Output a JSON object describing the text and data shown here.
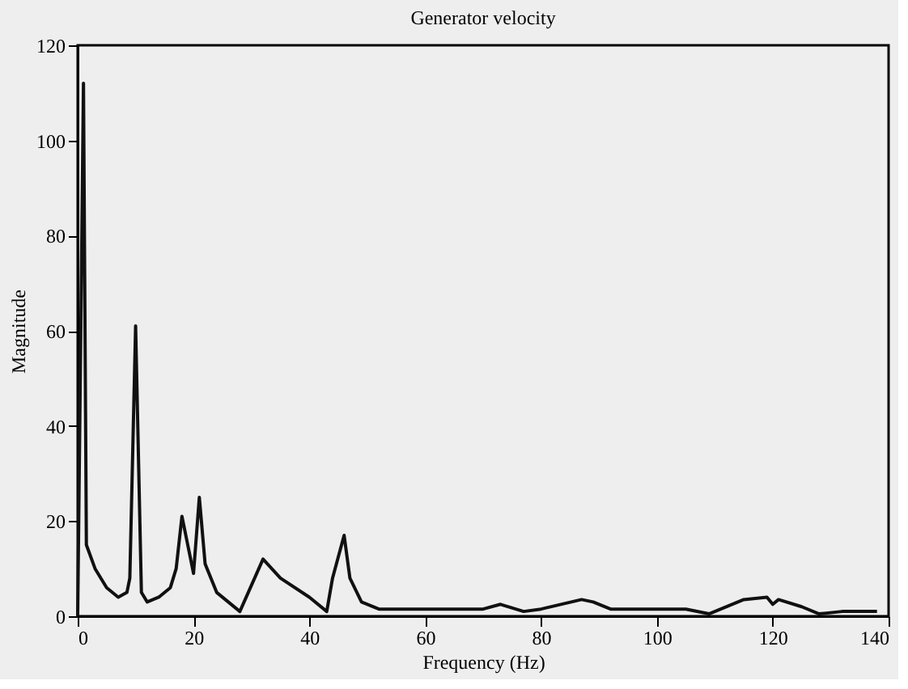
{
  "chart_data": {
    "type": "line",
    "title": "Generator velocity",
    "xlabel": "Frequency (Hz)",
    "ylabel": "Magnitude",
    "x": [
      0,
      1,
      1.5,
      3,
      5,
      7,
      8.5,
      9,
      10,
      11,
      12,
      14,
      16,
      17,
      18,
      20,
      21,
      22,
      24,
      28,
      32,
      35,
      40,
      43,
      44,
      46,
      47,
      49,
      52,
      60,
      70,
      73,
      77,
      80,
      87,
      89,
      92,
      100,
      105,
      109,
      115,
      119,
      120,
      121,
      125,
      128,
      132,
      138
    ],
    "series": [
      {
        "color": "#111111",
        "values": [
          0,
          112,
          15,
          10,
          6,
          4,
          5,
          8,
          61,
          5,
          3,
          4,
          6,
          10,
          21,
          9,
          25,
          11,
          5,
          1,
          12,
          8,
          4,
          1,
          8,
          17,
          8,
          3,
          1.5,
          1.5,
          1.5,
          2.5,
          1,
          1.5,
          3.5,
          3,
          1.5,
          1.5,
          1.5,
          0.5,
          3.5,
          4,
          2.5,
          3.5,
          2,
          0.5,
          1,
          1
        ]
      }
    ],
    "xlim": [
      0,
      140
    ],
    "ylim": [
      0,
      120
    ],
    "xticks": [
      0,
      20,
      40,
      60,
      80,
      100,
      120,
      140
    ],
    "yticks": [
      0,
      20,
      40,
      60,
      80,
      100,
      120
    ],
    "grid": false,
    "marker": "none",
    "line_style": "solid"
  }
}
